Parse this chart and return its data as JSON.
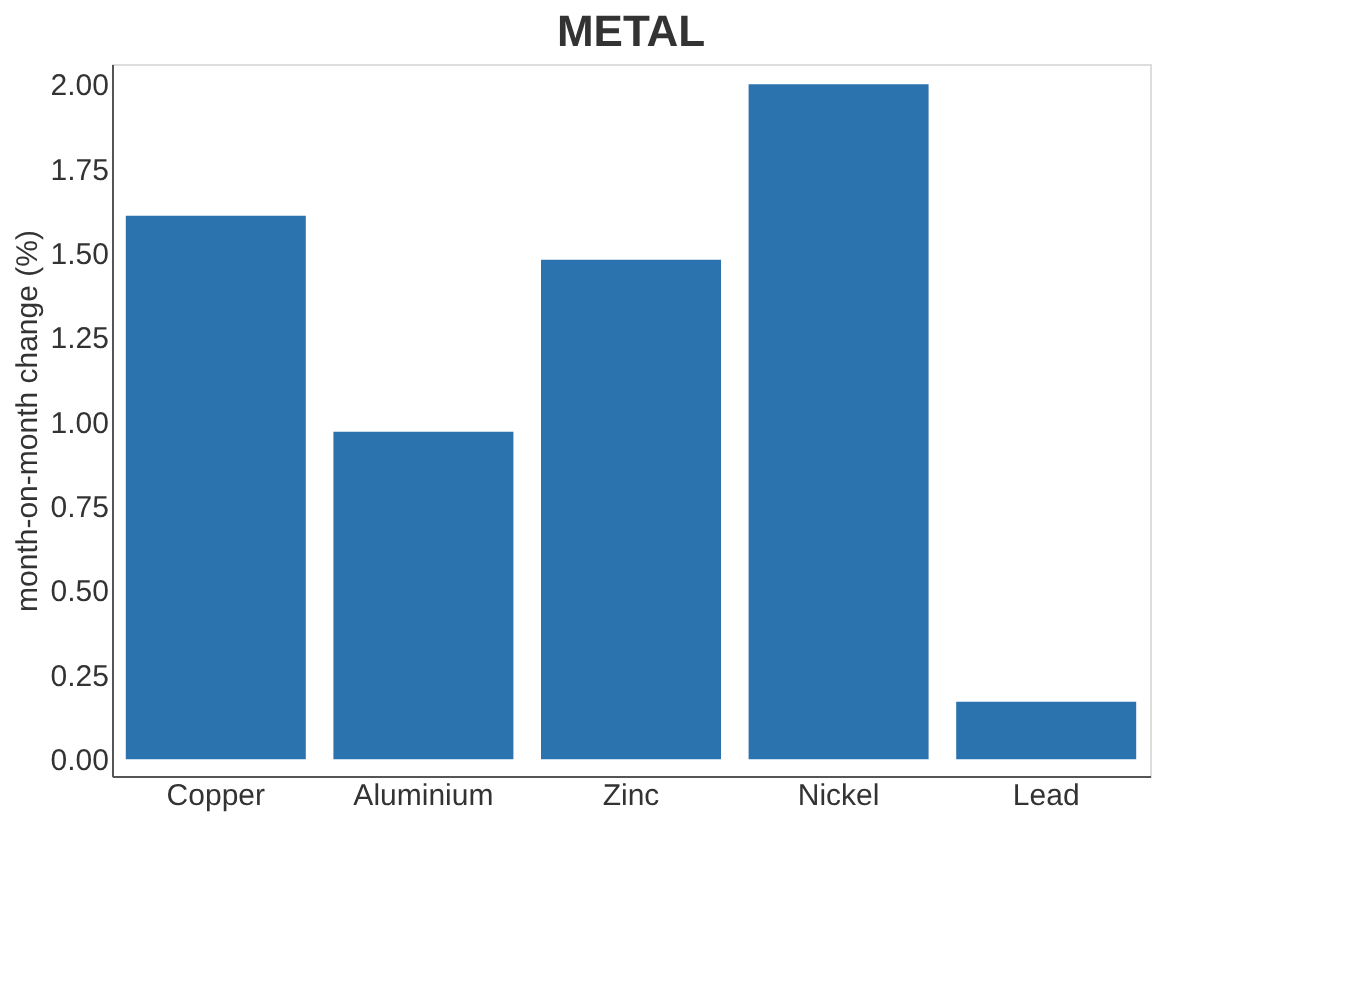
{
  "chart_data": {
    "type": "bar",
    "title": "METAL",
    "ylabel": "month-on-month change (%)",
    "categories": [
      "Copper",
      "Aluminium",
      "Zinc",
      "Nickel",
      "Lead"
    ],
    "values": [
      1.61,
      0.97,
      1.48,
      2.0,
      0.17
    ],
    "color": "#2a73ae",
    "ylim": [
      -0.05,
      2.06
    ],
    "yticks": [
      {
        "value": 0,
        "label": "0.00"
      },
      {
        "value": 0.25,
        "label": "0.25"
      },
      {
        "value": 0.5,
        "label": "0.50"
      },
      {
        "value": 0.75,
        "label": "0.75"
      },
      {
        "value": 1,
        "label": "1.00"
      },
      {
        "value": 1.25,
        "label": "1.25"
      },
      {
        "value": 1.5,
        "label": "1.50"
      },
      {
        "value": 1.75,
        "label": "1.75"
      },
      {
        "value": 2,
        "label": "2.00"
      }
    ],
    "grid": false
  }
}
